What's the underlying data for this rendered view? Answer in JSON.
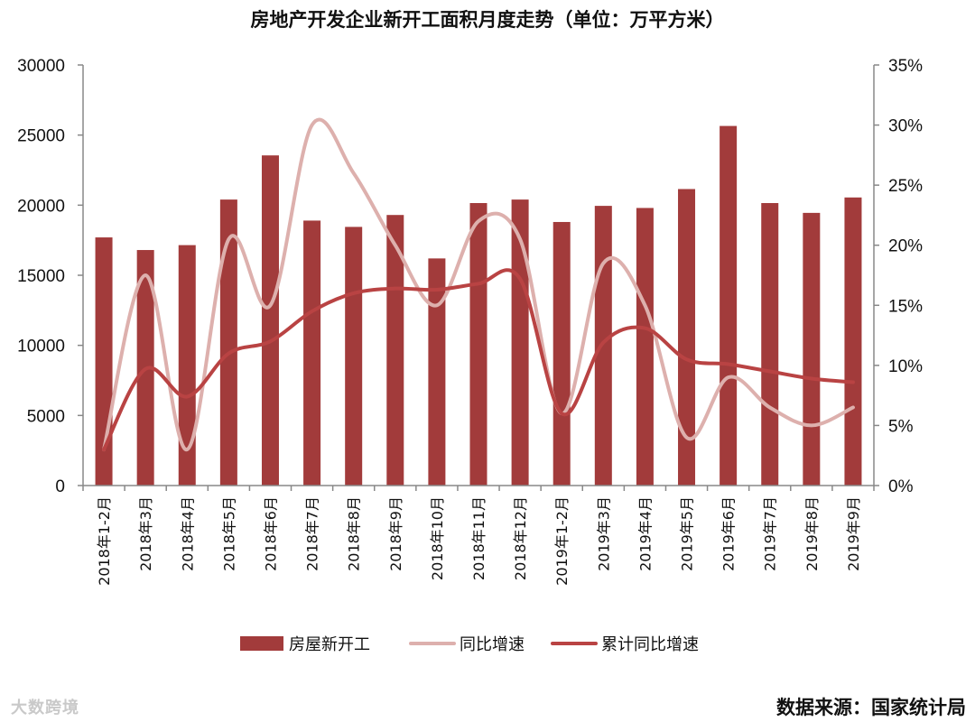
{
  "chart_data": {
    "type": "bar",
    "title": "房地产开发企业新开工面积月度走势（单位：万平方米）",
    "categories": [
      "2018年1-2月",
      "2018年3月",
      "2018年4月",
      "2018年5月",
      "2018年6月",
      "2018年7月",
      "2018年8月",
      "2018年9月",
      "2018年10月",
      "2018年11月",
      "2018年12月",
      "2019年1-2月",
      "2019年3月",
      "2019年4月",
      "2019年5月",
      "2019年6月",
      "2019年7月",
      "2019年8月",
      "2019年9月"
    ],
    "series": [
      {
        "name": "房屋新开工",
        "kind": "bar",
        "axis": "left",
        "color": "#a23b3b",
        "values": [
          17700,
          16800,
          17150,
          20400,
          23550,
          18900,
          18450,
          19300,
          16200,
          20150,
          20400,
          18800,
          19950,
          19800,
          21150,
          25650,
          20150,
          19450,
          20550
        ]
      },
      {
        "name": "同比增速",
        "kind": "line",
        "axis": "right",
        "color": "#ddb0ad",
        "values": [
          3.0,
          17.5,
          3.0,
          20.5,
          15.0,
          30.0,
          26.0,
          20.0,
          15.0,
          22.0,
          20.5,
          6.0,
          18.5,
          15.0,
          4.0,
          9.0,
          6.5,
          5.0,
          6.5
        ]
      },
      {
        "name": "累计同比增速",
        "kind": "line",
        "axis": "right",
        "color": "#b94343",
        "values": [
          3.0,
          9.7,
          7.4,
          11.0,
          12.0,
          14.5,
          16.0,
          16.4,
          16.3,
          16.8,
          17.2,
          6.0,
          11.9,
          13.1,
          10.5,
          10.1,
          9.5,
          8.9,
          8.6
        ]
      }
    ],
    "y_left": {
      "min": 0,
      "max": 30000,
      "ticks": [
        "0",
        "5000",
        "10000",
        "15000",
        "20000",
        "25000",
        "30000"
      ]
    },
    "y_right": {
      "min": 0,
      "max": 35,
      "ticks": [
        "0%",
        "5%",
        "10%",
        "15%",
        "20%",
        "25%",
        "30%",
        "35%"
      ]
    },
    "legend": "bottom",
    "grid": false
  },
  "source_note": "数据来源：国家统计局",
  "watermark": "大数跨境"
}
